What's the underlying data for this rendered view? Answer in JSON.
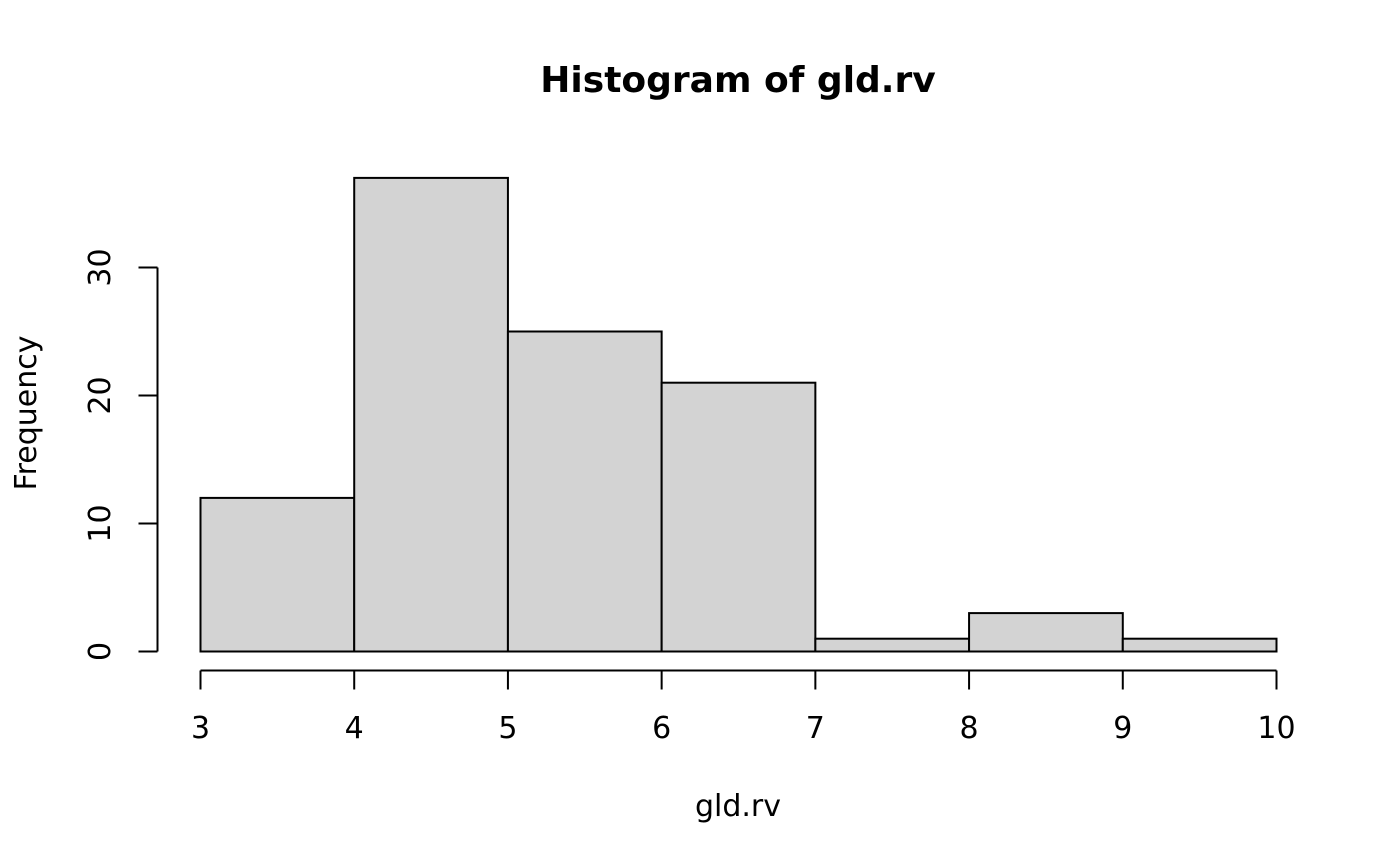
{
  "chart_data": {
    "type": "bar",
    "subtype": "histogram",
    "title": "Histogram of gld.rv",
    "xlabel": "gld.rv",
    "ylabel": "Frequency",
    "bins": [
      {
        "start": 3,
        "end": 4,
        "count": 12
      },
      {
        "start": 4,
        "end": 5,
        "count": 37
      },
      {
        "start": 5,
        "end": 6,
        "count": 25
      },
      {
        "start": 6,
        "end": 7,
        "count": 21
      },
      {
        "start": 7,
        "end": 8,
        "count": 1
      },
      {
        "start": 8,
        "end": 9,
        "count": 3
      },
      {
        "start": 9,
        "end": 10,
        "count": 1
      }
    ],
    "x_ticks": [
      "3",
      "4",
      "5",
      "6",
      "7",
      "8",
      "9",
      "10"
    ],
    "y_ticks": [
      "0",
      "10",
      "20",
      "30"
    ],
    "xlim": [
      3,
      10
    ],
    "ylim": [
      0,
      37
    ],
    "grid": false,
    "legend": "none",
    "colors": {
      "bar_fill": "#d3d3d3",
      "bar_stroke": "#000000",
      "axis": "#000000",
      "background": "#ffffff"
    }
  }
}
